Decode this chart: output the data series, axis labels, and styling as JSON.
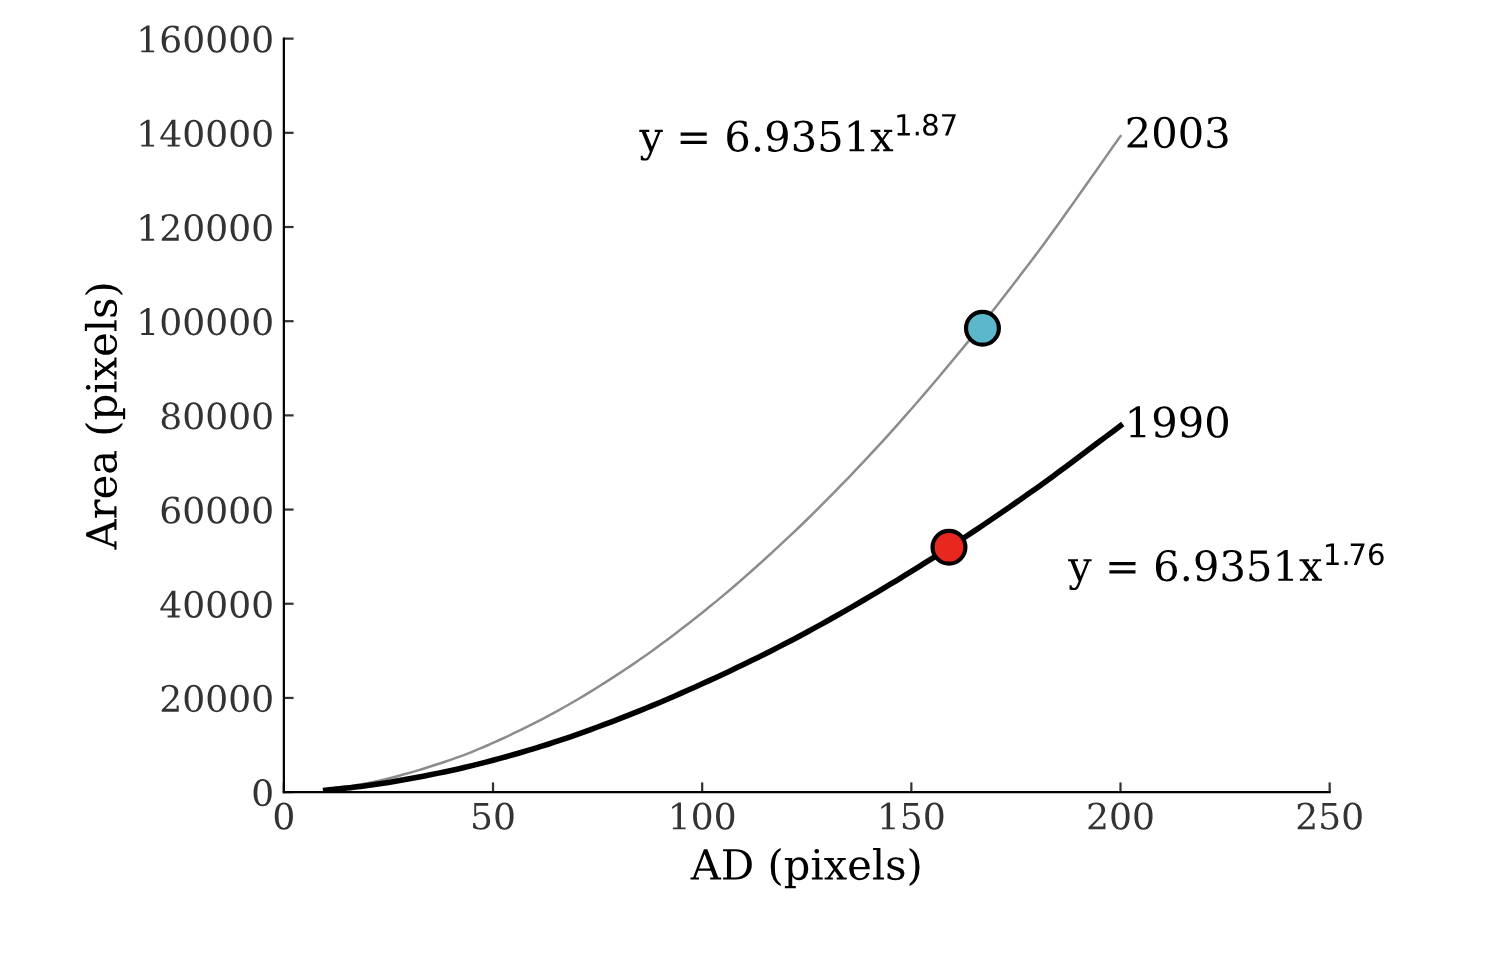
{
  "chart_data": {
    "type": "line",
    "xlabel": "AD (pixels)",
    "ylabel": "Area (pixels)",
    "xlim": [
      0,
      250
    ],
    "xticks": [
      0,
      50,
      100,
      150,
      200,
      250
    ],
    "ylim": [
      0,
      160000
    ],
    "yticks": [
      0,
      20000,
      40000,
      60000,
      80000,
      100000,
      120000,
      140000,
      160000
    ],
    "grid": false,
    "legend": false,
    "marker": "none",
    "series": [
      {
        "name": "2003",
        "color": "#8c8c8c",
        "x": [
          10,
          20,
          40,
          60,
          80,
          100,
          120,
          140,
          160,
          180,
          200
        ],
        "values": [
          500,
          1900,
          6900,
          14700,
          25100,
          38100,
          53600,
          71500,
          91800,
          114400,
          139300
        ]
      },
      {
        "name": "1990",
        "color": "#000000",
        "x": [
          10,
          20,
          40,
          60,
          80,
          100,
          120,
          140,
          160,
          180,
          200
        ],
        "values": [
          400,
          1400,
          4600,
          9300,
          15500,
          23000,
          31600,
          41500,
          52500,
          64600,
          77800
        ]
      },
      {
        "type": "scatter",
        "marker": "circle",
        "color": "#5bb8cc",
        "x": [
          167
        ],
        "values": [
          98500
        ]
      },
      {
        "type": "scatter",
        "marker": "circle",
        "color": "#e8281e",
        "x": [
          159
        ],
        "values": [
          52000
        ]
      }
    ],
    "annotations": [
      "y = 6.9351x$^{1.87}$",
      "y = 6.9351x$^{1.76}$"
    ]
  }
}
